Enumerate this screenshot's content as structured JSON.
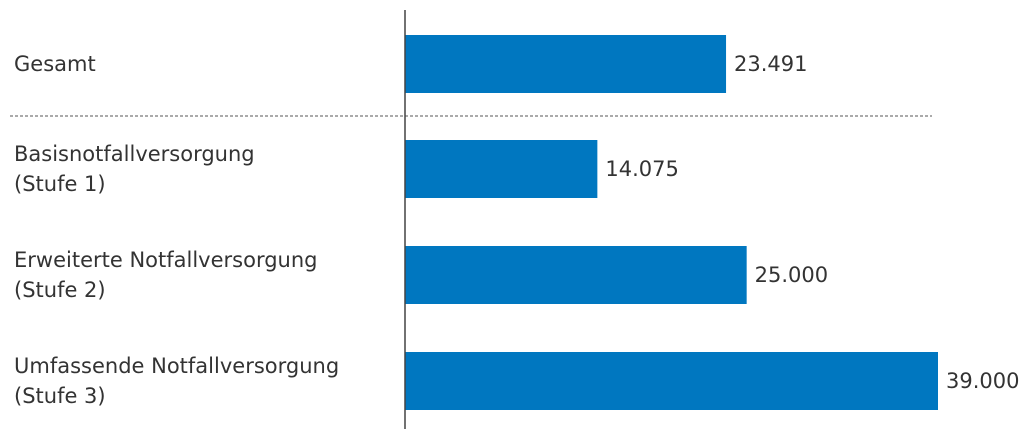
{
  "chart_data": {
    "type": "bar",
    "orientation": "horizontal",
    "categories": [
      "Gesamt",
      "Basisnotfallversorgung\n(Stufe 1)",
      "Erweiterte Notfallversorgung\n(Stufe 2)",
      "Umfassende Notfallversorgung\n(Stufe 3)"
    ],
    "values": [
      23491,
      14075,
      25000,
      39000
    ],
    "value_labels": [
      "23.491",
      "14.075",
      "25.000",
      "39.000"
    ],
    "color": "#0077c0"
  }
}
